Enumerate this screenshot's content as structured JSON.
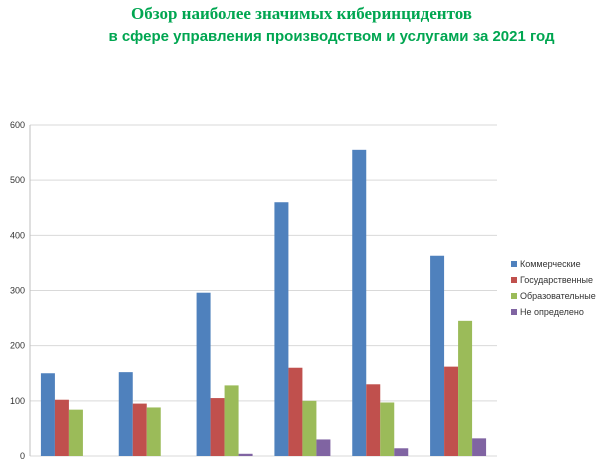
{
  "header": {
    "title_line1": "Обзор наиболее значимых киберинцидентов",
    "title_line2": "в сфере управления производством и услугами за 2021 год"
  },
  "chart_data": {
    "type": "bar",
    "title": "Обзор наиболее значимых киберинцидентов в сфере управления производством и услугами за 2021 год",
    "categories": [
      "",
      "",
      "",
      "",
      "",
      ""
    ],
    "series": [
      {
        "name": "Коммерческие",
        "color": "#4f81bd",
        "values": [
          150,
          152,
          296,
          460,
          555,
          363
        ]
      },
      {
        "name": "Государственные",
        "color": "#c0504d",
        "values": [
          102,
          95,
          105,
          160,
          130,
          162
        ]
      },
      {
        "name": "Образовательные",
        "color": "#9bbb59",
        "values": [
          84,
          88,
          128,
          100,
          97,
          245
        ]
      },
      {
        "name": "Не определено",
        "color": "#8064a2",
        "values": [
          0,
          0,
          4,
          30,
          14,
          32
        ]
      }
    ],
    "ylim": [
      0,
      600
    ],
    "yticks": [
      0,
      100,
      200,
      300,
      400,
      500,
      600
    ],
    "grid": true,
    "legend_position": "right"
  }
}
